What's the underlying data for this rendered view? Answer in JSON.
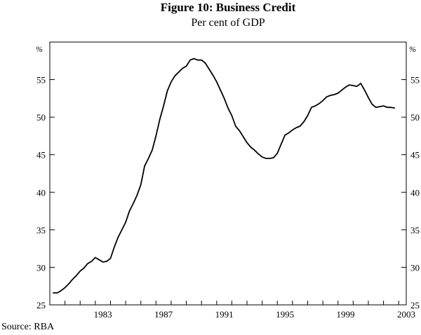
{
  "chart_data": {
    "type": "line",
    "title": "Figure 10: Business Credit",
    "subtitle": "Per cent of GDP",
    "unit_left": "%",
    "unit_right": "%",
    "ylim": [
      25,
      60
    ],
    "yticks": [
      25,
      30,
      35,
      40,
      45,
      50,
      55
    ],
    "xlim": [
      1980.0,
      2003.5
    ],
    "xticks": [
      1983,
      1987,
      1991,
      1995,
      1999,
      2003
    ],
    "grid": false,
    "source": "Source: RBA",
    "series": [
      {
        "x": [
          1980.2,
          1980.5,
          1980.75,
          1981.0,
          1981.25,
          1981.5,
          1981.75,
          1982.0,
          1982.25,
          1982.5,
          1982.75,
          1983.0,
          1983.25,
          1983.5,
          1983.75,
          1984.0,
          1984.25,
          1984.5,
          1984.75,
          1985.0,
          1985.25,
          1985.5,
          1985.75,
          1986.0,
          1986.25,
          1986.5,
          1986.75,
          1987.0,
          1987.25,
          1987.5,
          1987.75,
          1988.0,
          1988.25,
          1988.5,
          1988.75,
          1989.0,
          1989.25,
          1989.5,
          1989.75,
          1990.0,
          1990.25,
          1990.5,
          1990.75,
          1991.0,
          1991.25,
          1991.5,
          1991.75,
          1992.0,
          1992.25,
          1992.5,
          1992.75,
          1993.0,
          1993.25,
          1993.5,
          1993.75,
          1994.0,
          1994.25,
          1994.5,
          1994.75,
          1995.0,
          1995.25,
          1995.5,
          1995.75,
          1996.0,
          1996.25,
          1996.5,
          1996.75,
          1997.0,
          1997.25,
          1997.5,
          1997.75,
          1998.0,
          1998.25,
          1998.5,
          1998.75,
          1999.0,
          1999.25,
          1999.5,
          1999.75,
          2000.0,
          2000.25,
          2000.5,
          2000.75,
          2001.0,
          2001.25,
          2001.5,
          2001.75,
          2002.0,
          2002.25,
          2002.5,
          2002.75
        ],
        "y": [
          26.6,
          26.6,
          26.9,
          27.3,
          27.8,
          28.4,
          28.9,
          29.5,
          29.9,
          30.5,
          30.8,
          31.3,
          31.0,
          30.7,
          30.8,
          31.2,
          32.7,
          34.0,
          35.0,
          36.0,
          37.5,
          38.5,
          39.6,
          41.0,
          43.5,
          44.5,
          45.6,
          47.5,
          49.7,
          51.5,
          53.5,
          54.7,
          55.5,
          56.0,
          56.5,
          56.8,
          57.6,
          57.8,
          57.6,
          57.6,
          57.2,
          56.4,
          55.6,
          54.7,
          53.6,
          52.5,
          51.2,
          50.2,
          48.8,
          48.2,
          47.4,
          46.6,
          46.0,
          45.6,
          45.1,
          44.7,
          44.5,
          44.5,
          44.6,
          45.2,
          46.4,
          47.6,
          47.9,
          48.3,
          48.6,
          48.8,
          49.4,
          50.2,
          51.3,
          51.5,
          51.8,
          52.2,
          52.7,
          52.9,
          53.0,
          53.2,
          53.6,
          54.0,
          54.3,
          54.2,
          54.1,
          54.5,
          53.6,
          52.6,
          51.7,
          51.3,
          51.4,
          51.5,
          51.3,
          51.3,
          51.2
        ]
      }
    ]
  }
}
